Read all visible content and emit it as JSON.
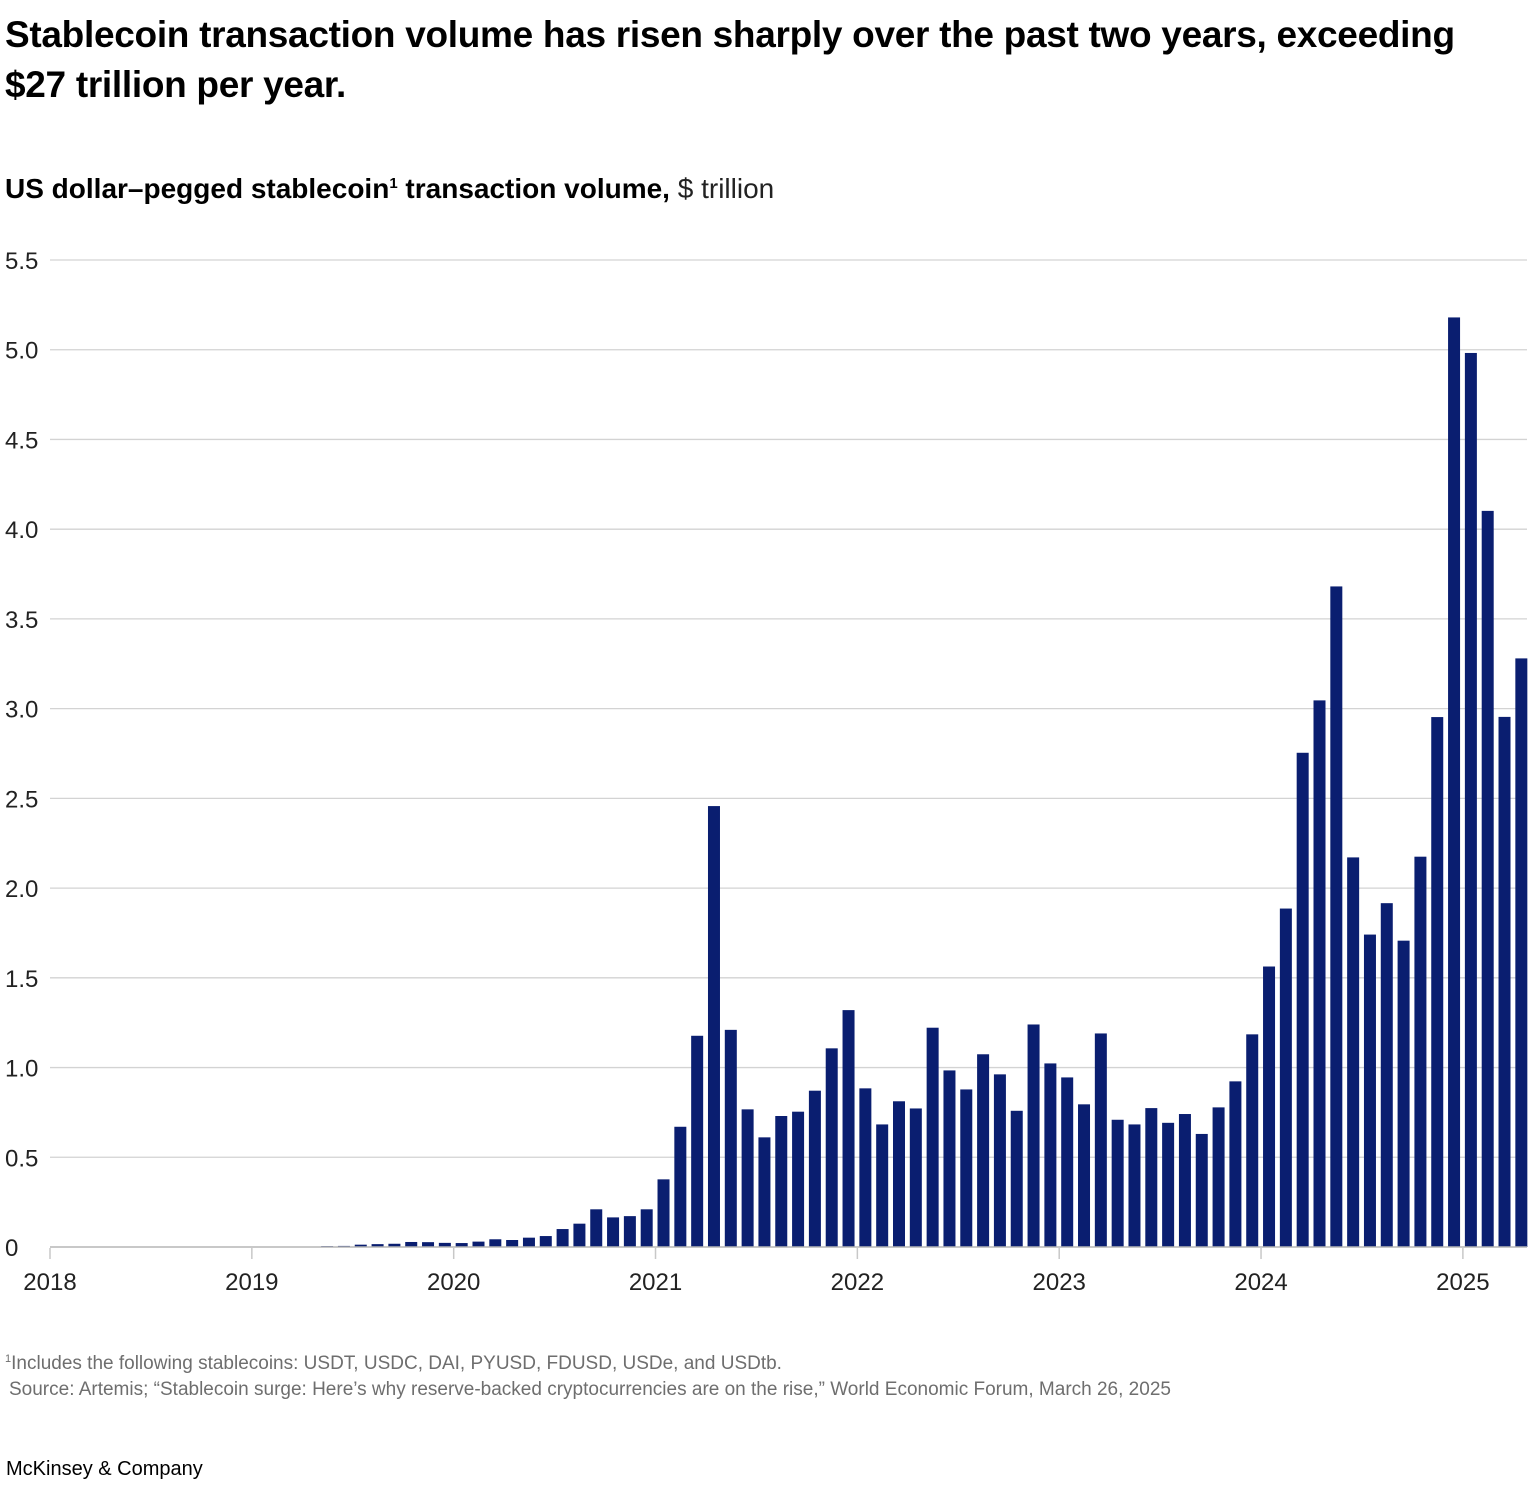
{
  "header": {
    "title": "Stablecoin transaction volume has risen sharply over the past two years, exceeding $27 trillion per year.",
    "subtitle_bold_pre": "US dollar–pegged stablecoin",
    "subtitle_sup": "1",
    "subtitle_bold_post": " transaction volume,",
    "subtitle_unit": " $ trillion"
  },
  "footer": {
    "footnote_marker": "1",
    "footnote_text": "Includes the following stablecoins: USDT, USDC, DAI, PYUSD, FDUSD, USDe, and USDtb.",
    "source_text": "Source: Artemis; “Stablecoin surge: Here’s why reserve-backed cryptocurrencies are on the rise,” World Economic Forum, March 26, 2025",
    "brand": "McKinsey & Company"
  },
  "colors": {
    "bar": "#0a1e70",
    "gridline": "#d3d3d3",
    "text": "#222222",
    "footnote": "#6e6e6e"
  },
  "chart_data": {
    "type": "bar",
    "title": "US dollar–pegged stablecoin transaction volume, $ trillion",
    "xlabel": "",
    "ylabel": "$ trillion",
    "ylim": [
      0,
      5.5
    ],
    "yticks": [
      0,
      0.5,
      1.0,
      1.5,
      2.0,
      2.5,
      3.0,
      3.5,
      4.0,
      4.5,
      5.0,
      5.5
    ],
    "ytick_labels": [
      "0",
      "0.5",
      "1.0",
      "1.5",
      "2.0",
      "2.5",
      "3.0",
      "3.5",
      "4.0",
      "4.5",
      "5.0",
      "5.5"
    ],
    "xticks": [
      "2018",
      "2019",
      "2020",
      "2021",
      "2022",
      "2023",
      "2024",
      "2025"
    ],
    "xlim": [
      "2018-01",
      "2025-04"
    ],
    "grid": true,
    "legend": "none",
    "frequency": "monthly",
    "categories": [
      "2019-05",
      "2019-06",
      "2019-07",
      "2019-08",
      "2019-09",
      "2019-10",
      "2019-11",
      "2019-12",
      "2020-01",
      "2020-02",
      "2020-03",
      "2020-04",
      "2020-05",
      "2020-06",
      "2020-07",
      "2020-08",
      "2020-09",
      "2020-10",
      "2020-11",
      "2020-12",
      "2021-01",
      "2021-02",
      "2021-03",
      "2021-04",
      "2021-05",
      "2021-06",
      "2021-07",
      "2021-08",
      "2021-09",
      "2021-10",
      "2021-11",
      "2021-12",
      "2022-01",
      "2022-02",
      "2022-03",
      "2022-04",
      "2022-05",
      "2022-06",
      "2022-07",
      "2022-08",
      "2022-09",
      "2022-10",
      "2022-11",
      "2022-12",
      "2023-01",
      "2023-02",
      "2023-03",
      "2023-04",
      "2023-05",
      "2023-06",
      "2023-07",
      "2023-08",
      "2023-09",
      "2023-10",
      "2023-11",
      "2023-12",
      "2024-01",
      "2024-02",
      "2024-03",
      "2024-04",
      "2024-05",
      "2024-06",
      "2024-07",
      "2024-08",
      "2024-09",
      "2024-10",
      "2024-11",
      "2024-12",
      "2025-01",
      "2025-02",
      "2025-03",
      "2025-04"
    ],
    "values": [
      0.005,
      0.006,
      0.013,
      0.016,
      0.018,
      0.028,
      0.027,
      0.023,
      0.022,
      0.03,
      0.043,
      0.039,
      0.052,
      0.061,
      0.1,
      0.13,
      0.21,
      0.165,
      0.172,
      0.21,
      0.377,
      0.67,
      1.177,
      2.457,
      1.21,
      0.767,
      0.611,
      0.73,
      0.754,
      0.871,
      1.107,
      1.32,
      0.884,
      0.683,
      0.812,
      0.772,
      1.222,
      0.984,
      0.878,
      1.074,
      0.962,
      0.759,
      1.24,
      1.023,
      0.945,
      0.795,
      1.19,
      0.709,
      0.683,
      0.774,
      0.692,
      0.741,
      0.63,
      0.778,
      0.923,
      1.185,
      1.563,
      1.886,
      2.754,
      3.046,
      3.681,
      2.171,
      1.741,
      1.916,
      1.707,
      2.175,
      2.953,
      5.18,
      4.982,
      4.102,
      2.954,
      3.28
    ]
  }
}
